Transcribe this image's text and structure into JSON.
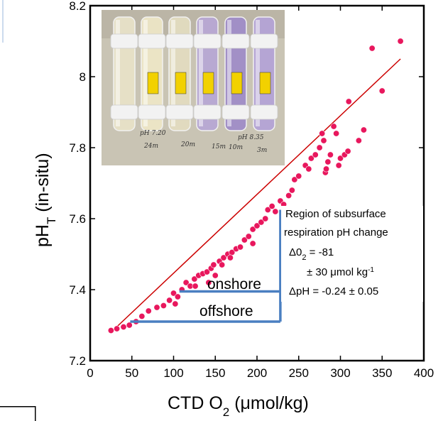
{
  "chart_data": {
    "type": "scatter",
    "xlabel": "CTD O",
    "xlabel_sub": "2",
    "xlabel_units": " (μmol/kg)",
    "ylabel": "pH",
    "ylabel_sub": "T",
    "ylabel_rest": " (in-situ)",
    "xlim": [
      0,
      400
    ],
    "ylim": [
      7.2,
      8.2
    ],
    "x_ticks": [
      0,
      50,
      100,
      150,
      200,
      250,
      300,
      350,
      400
    ],
    "y_ticks": [
      7.2,
      7.4,
      7.6,
      7.8,
      8.0,
      8.2
    ],
    "y_tick_labels": [
      "7.2",
      "7.4",
      "7.6",
      "7.8",
      "8",
      "8.2"
    ],
    "marker_color": "#e8175d",
    "fit_color": "#cc0000",
    "fit_line": [
      [
        25,
        7.28
      ],
      [
        372,
        8.05
      ]
    ],
    "points": [
      [
        25,
        7.285
      ],
      [
        32,
        7.29
      ],
      [
        40,
        7.295
      ],
      [
        47,
        7.3
      ],
      [
        55,
        7.31
      ],
      [
        62,
        7.325
      ],
      [
        70,
        7.34
      ],
      [
        80,
        7.35
      ],
      [
        88,
        7.355
      ],
      [
        95,
        7.37
      ],
      [
        100,
        7.39
      ],
      [
        105,
        7.38
      ],
      [
        110,
        7.4
      ],
      [
        115,
        7.42
      ],
      [
        120,
        7.41
      ],
      [
        125,
        7.43
      ],
      [
        130,
        7.44
      ],
      [
        135,
        7.445
      ],
      [
        140,
        7.45
      ],
      [
        145,
        7.46
      ],
      [
        148,
        7.47
      ],
      [
        150,
        7.44
      ],
      [
        155,
        7.48
      ],
      [
        160,
        7.49
      ],
      [
        165,
        7.5
      ],
      [
        170,
        7.505
      ],
      [
        175,
        7.515
      ],
      [
        180,
        7.52
      ],
      [
        185,
        7.54
      ],
      [
        190,
        7.55
      ],
      [
        195,
        7.57
      ],
      [
        200,
        7.58
      ],
      [
        205,
        7.59
      ],
      [
        210,
        7.6
      ],
      [
        213,
        7.625
      ],
      [
        218,
        7.635
      ],
      [
        222,
        7.62
      ],
      [
        228,
        7.65
      ],
      [
        232,
        7.64
      ],
      [
        238,
        7.665
      ],
      [
        242,
        7.68
      ],
      [
        245,
        7.71
      ],
      [
        250,
        7.72
      ],
      [
        258,
        7.75
      ],
      [
        262,
        7.74
      ],
      [
        265,
        7.77
      ],
      [
        270,
        7.78
      ],
      [
        275,
        7.8
      ],
      [
        278,
        7.84
      ],
      [
        280,
        7.82
      ],
      [
        282,
        7.73
      ],
      [
        283,
        7.74
      ],
      [
        285,
        7.76
      ],
      [
        288,
        7.78
      ],
      [
        292,
        7.86
      ],
      [
        295,
        7.84
      ],
      [
        298,
        7.75
      ],
      [
        300,
        7.77
      ],
      [
        305,
        7.78
      ],
      [
        309,
        7.79
      ],
      [
        310,
        7.93
      ],
      [
        322,
        7.82
      ],
      [
        328,
        7.85
      ],
      [
        338,
        8.08
      ],
      [
        350,
        7.96
      ],
      [
        372,
        8.1
      ],
      [
        195,
        7.53
      ],
      [
        168,
        7.49
      ],
      [
        158,
        7.47
      ],
      [
        142,
        7.42
      ],
      [
        126,
        7.41
      ],
      [
        102,
        7.36
      ]
    ],
    "brackets": {
      "color": "#4a7fc1",
      "x": 228,
      "y_top": 7.625,
      "onshore_y": 7.395,
      "onshore_x_start": 107,
      "offshore_y": 7.31,
      "offshore_x_start": 48
    },
    "annotations": {
      "onshore": "onshore",
      "offshore": "offshore",
      "region_line1": "Region of subsurface",
      "region_line2": "respiration pH change",
      "delta_o2": "Δ0",
      "delta_o2_sub": "2",
      "delta_o2_value": " = -81",
      "uncertainty": "± 30 μmol kg",
      "uncertainty_sup": "-1",
      "delta_ph": "ΔpH = -0.24 ± 0.05"
    }
  },
  "photo": {
    "tube_colors": [
      "#e8e2c8",
      "#ede6c6",
      "#e3dcc0",
      "#b8a8d4",
      "#a08ec8",
      "#b4a4d6"
    ],
    "captions": [
      "pH 7.20",
      "24m",
      "20m",
      "15m",
      "10m",
      "pH 8.35",
      "3m"
    ]
  }
}
